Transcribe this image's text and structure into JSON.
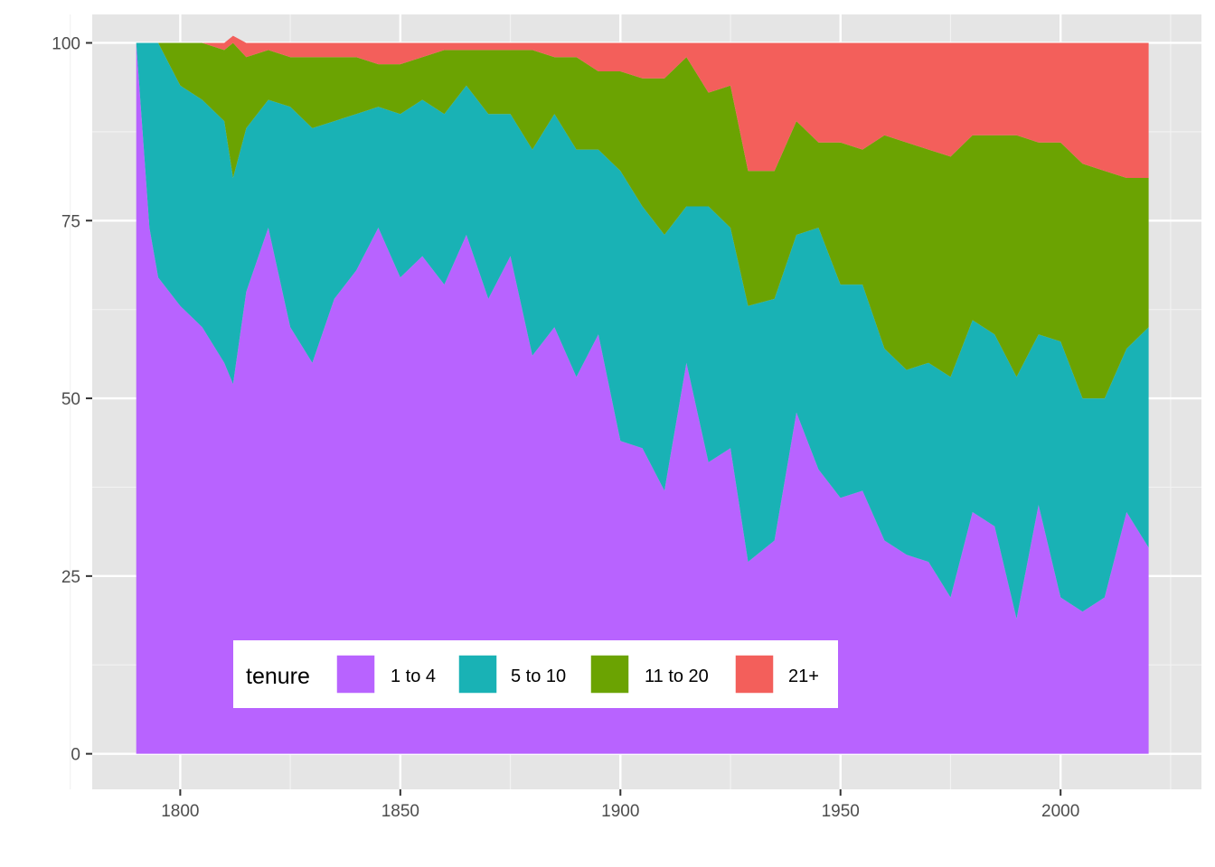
{
  "chart_data": {
    "type": "area",
    "stacked": true,
    "title": "",
    "xlabel": "",
    "ylabel": "",
    "xlim": [
      1780,
      2032
    ],
    "ylim": [
      -5,
      104
    ],
    "x_ticks": [
      1800,
      1850,
      1900,
      1950,
      2000
    ],
    "y_ticks": [
      0,
      25,
      50,
      75,
      100
    ],
    "grid": true,
    "legend": {
      "title": "tenure",
      "position": "bottom-left inside",
      "orientation": "horizontal"
    },
    "colors": {
      "1 to 4": "#B863FF",
      "5 to 10": "#19B2B5",
      "11 to 20": "#6BA302",
      "21+": "#F35F5B"
    },
    "x": [
      1790,
      1793,
      1795,
      1800,
      1805,
      1810,
      1812,
      1815,
      1820,
      1825,
      1830,
      1835,
      1840,
      1845,
      1850,
      1855,
      1860,
      1865,
      1870,
      1875,
      1880,
      1885,
      1890,
      1895,
      1900,
      1905,
      1910,
      1915,
      1920,
      1925,
      1929,
      1935,
      1940,
      1945,
      1950,
      1955,
      1960,
      1965,
      1970,
      1975,
      1980,
      1985,
      1990,
      1995,
      2000,
      2005,
      2010,
      2015,
      2020
    ],
    "series": [
      {
        "name": "1 to 4",
        "values": [
          100,
          74,
          67,
          63,
          60,
          55,
          52,
          65,
          74,
          60,
          55,
          64,
          68,
          74,
          67,
          70,
          66,
          73,
          64,
          70,
          56,
          60,
          53,
          59,
          44,
          43,
          37,
          55,
          41,
          43,
          27,
          30,
          48,
          40,
          36,
          37,
          30,
          28,
          27,
          22,
          34,
          32,
          19,
          35,
          22,
          20,
          22,
          34,
          29
        ]
      },
      {
        "name": "5 to 10",
        "values": [
          0,
          26,
          33,
          31,
          32,
          34,
          29,
          23,
          18,
          31,
          33,
          25,
          22,
          17,
          23,
          22,
          24,
          21,
          26,
          20,
          29,
          30,
          32,
          26,
          38,
          34,
          36,
          22,
          36,
          31,
          36,
          34,
          25,
          34,
          30,
          29,
          27,
          26,
          28,
          31,
          27,
          27,
          34,
          24,
          36,
          30,
          28,
          23,
          31
        ]
      },
      {
        "name": "11 to 20",
        "values": [
          0,
          0,
          0,
          6,
          8,
          10,
          19,
          10,
          7,
          7,
          10,
          9,
          8,
          6,
          7,
          6,
          9,
          5,
          9,
          9,
          14,
          8,
          13,
          11,
          14,
          18,
          22,
          21,
          16,
          20,
          19,
          18,
          16,
          12,
          20,
          19,
          30,
          32,
          30,
          31,
          26,
          28,
          34,
          27,
          28,
          33,
          32,
          24,
          21
        ]
      },
      {
        "name": "21+",
        "values": [
          0,
          0,
          0,
          0,
          0,
          1,
          1,
          2,
          1,
          2,
          2,
          2,
          2,
          3,
          3,
          2,
          1,
          1,
          1,
          1,
          1,
          2,
          2,
          4,
          4,
          5,
          5,
          2,
          7,
          6,
          18,
          18,
          11,
          14,
          14,
          15,
          13,
          14,
          15,
          16,
          13,
          13,
          13,
          14,
          14,
          17,
          18,
          19,
          19
        ]
      }
    ]
  }
}
